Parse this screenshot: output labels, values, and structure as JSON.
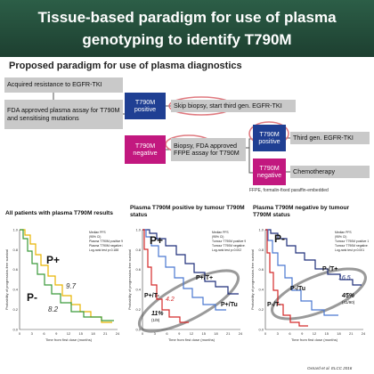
{
  "header": {
    "title": "Tissue-based paradigm for use of plasma genotyping to identify T790M"
  },
  "subtitle": "Proposed paradigm for use of plasma diagnostics",
  "flow": {
    "nodes": [
      {
        "label": "Acquired resistance to EGFR-TKI"
      },
      {
        "label": "FDA approved plasma assay for T790M and sensitising mutations"
      },
      {
        "label": "T790M positive"
      },
      {
        "label": "Skip biopsy, start third gen. EGFR-TKI"
      },
      {
        "label": "T790M negative"
      },
      {
        "label": "Biopsy, FDA approved FFPE assay for T790M"
      },
      {
        "label": "T790M positive"
      },
      {
        "label": "Third gen. EGFR-TKI"
      },
      {
        "label": "T790M negative"
      },
      {
        "label": "Chemotherapy"
      }
    ],
    "footnote": "FFPE, formalin-fixed paraffin-embedded"
  },
  "panels": [
    {
      "title": "All patients with plasma T790M results",
      "y_axis_label": "Probability of progression-free survival",
      "x_axis_label": "Time from first dose (months)",
      "yticks": [
        "0.0",
        "0.2",
        "0.4",
        "0.6",
        "0.8",
        "1.0"
      ],
      "xticks": [
        "0",
        "3",
        "6",
        "9",
        "12",
        "15",
        "18",
        "21",
        "24"
      ],
      "curve_labels": [
        "P+",
        "P-"
      ],
      "annotations": [
        "9.7",
        "8.2"
      ],
      "legend": [
        "Median PFS",
        "(95% CI)",
        "Plasma T790M positive 9.7 (8.3, 11.1)",
        "Plasma T790M negative 8.2 (5.3, 10.9)",
        "Log-rank test p=0.188"
      ]
    },
    {
      "title": "Plasma T790M positive by tumour T790M status",
      "y_axis_label": "Probability of progression-free survival",
      "x_axis_label": "Time from first dose (months)",
      "yticks": [
        "0.0",
        "0.2",
        "0.4",
        "0.6",
        "0.8",
        "1.0"
      ],
      "xticks": [
        "0",
        "3",
        "6",
        "9",
        "12",
        "15",
        "18",
        "21",
        "24"
      ],
      "curve_labels": [
        "P+",
        "P+/T+",
        "P+/Tu",
        "P+/T-"
      ],
      "annotations": [
        "4.2",
        "11%",
        "(1/9)"
      ],
      "legend": [
        "Median PFS",
        "(95% CI)",
        "Tumour T790M positive 9.9 (8.3, 11.1)",
        "Tumour T790M negative 4.2 (1.3, 5.9)",
        "Log-rank test p=0.002"
      ]
    },
    {
      "title": "Plasma T790M negative by tumour T790M status",
      "y_axis_label": "Probability of progression-free survival",
      "x_axis_label": "Time from first dose (months)",
      "yticks": [
        "0.0",
        "0.2",
        "0.4",
        "0.6",
        "0.8",
        "1.0"
      ],
      "xticks": [
        "0",
        "3",
        "6",
        "9",
        "12",
        "15",
        "18",
        "21",
        "24"
      ],
      "curve_labels": [
        "P-",
        "P-/T+",
        "P-/Tu",
        "P-/T-"
      ],
      "annotations": [
        "16.5",
        "45%",
        "(41/90)"
      ],
      "legend": [
        "Median PFS",
        "(95% CI)",
        "Tumour T790M positive 16.5 (10.9, NC)",
        "Tumour T790M negative 2.8 (1.4, 4.2)",
        "Log-rank test p<0.001"
      ]
    }
  ],
  "citation": "Oxnard et al. ELCC 2016"
}
